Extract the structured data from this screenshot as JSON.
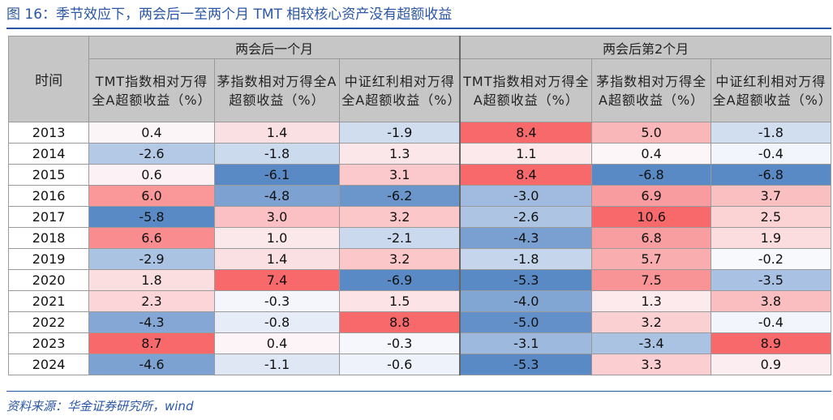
{
  "figure": {
    "title": "图 16：季节效应下，两会后一至两个月 TMT 相较核心资产没有超额收益",
    "source": "资料来源：华金证券研究所，wind"
  },
  "table": {
    "time_header": "时间",
    "groups": [
      {
        "label": "两会后一个月",
        "columns": [
          "TMT指数相对万得全A超额收益（%）",
          "茅指数相对万得全A超额收益（%）",
          "中证红利相对万得全A超额收益（%）"
        ]
      },
      {
        "label": "两会后第2个月",
        "columns": [
          "TMT指数相对万得全A超额收益（%）",
          "茅指数相对万得全A超额收益（%）",
          "中证红利相对万得全A超额收益（%）"
        ]
      }
    ],
    "years": [
      "2013",
      "2014",
      "2015",
      "2016",
      "2017",
      "2018",
      "2019",
      "2020",
      "2021",
      "2022",
      "2023",
      "2024"
    ],
    "values": [
      [
        "0.4",
        "1.4",
        "-1.9",
        "8.4",
        "5.0",
        "-1.8"
      ],
      [
        "-2.6",
        "-1.8",
        "1.3",
        "1.1",
        "0.4",
        "-0.4"
      ],
      [
        "0.6",
        "-6.1",
        "3.1",
        "8.4",
        "-6.8",
        "-6.8"
      ],
      [
        "6.0",
        "-4.8",
        "-6.2",
        "-3.0",
        "6.9",
        "3.7"
      ],
      [
        "-5.8",
        "3.0",
        "3.2",
        "-2.6",
        "10.6",
        "2.5"
      ],
      [
        "6.6",
        "1.0",
        "-2.1",
        "-4.3",
        "6.8",
        "1.9"
      ],
      [
        "-2.9",
        "1.4",
        "3.2",
        "-1.8",
        "5.7",
        "-0.2"
      ],
      [
        "1.8",
        "7.4",
        "-6.9",
        "-5.3",
        "7.5",
        "-3.5"
      ],
      [
        "2.3",
        "-0.3",
        "1.5",
        "-4.0",
        "1.3",
        "3.8"
      ],
      [
        "-4.3",
        "-0.8",
        "8.8",
        "-5.0",
        "3.2",
        "-0.4"
      ],
      [
        "8.7",
        "0.4",
        "-0.3",
        "-3.1",
        "-3.4",
        "8.9"
      ],
      [
        "-4.6",
        "-1.1",
        "-0.6",
        "-5.3",
        "3.3",
        "0.9"
      ]
    ],
    "colors": {
      "positive_max": "#f8696b",
      "negative_max": "#5a8ac6",
      "neutral": "#fcfcff",
      "header_bg": "#c6c6c6"
    }
  }
}
